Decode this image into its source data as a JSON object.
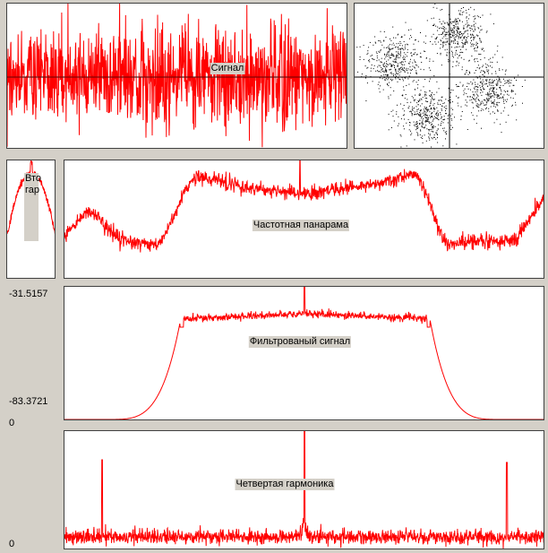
{
  "panels": {
    "signal": {
      "label": "Сигнал"
    },
    "second_harmonic": {
      "label_lines": [
        "Вто",
        "гар"
      ]
    },
    "spectrum": {
      "label": "Частотная панарама"
    },
    "filtered": {
      "label": "Фильтрованый сигнал",
      "max_label": "-31.5157",
      "min_label": "-83.3721",
      "zero_label": "0"
    },
    "fourth_harmonic": {
      "label": "Четвертая гармоника",
      "zero_label": "0"
    }
  }
}
